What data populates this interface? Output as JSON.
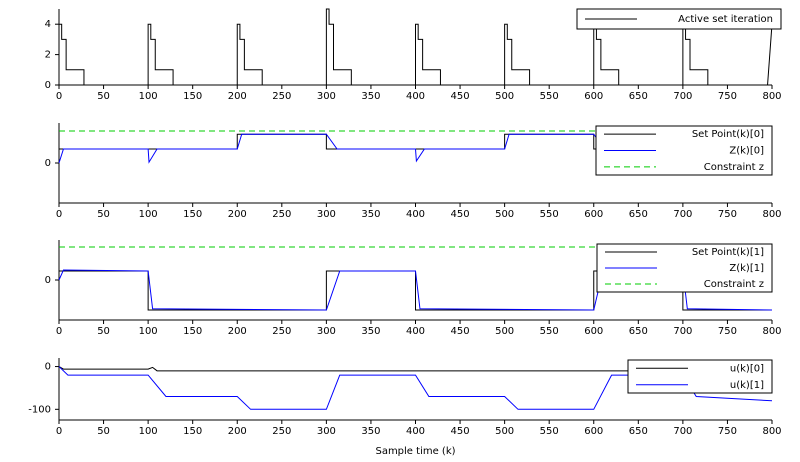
{
  "chart_data": [
    {
      "type": "line",
      "xlim": [
        0,
        800
      ],
      "ylim": [
        0,
        5
      ],
      "yticks": [
        0,
        2,
        4
      ],
      "xticks": [
        0,
        50,
        100,
        150,
        200,
        250,
        300,
        350,
        400,
        450,
        500,
        550,
        600,
        650,
        700,
        750,
        800
      ],
      "series": [
        {
          "name": "Active set iteration",
          "color": "#000000",
          "x": [
            0,
            0,
            3,
            3,
            8,
            8,
            28,
            28,
            100,
            100,
            103,
            103,
            108,
            108,
            128,
            128,
            200,
            200,
            203,
            203,
            208,
            208,
            228,
            228,
            300,
            300,
            303,
            303,
            308,
            308,
            328,
            328,
            400,
            400,
            403,
            403,
            408,
            408,
            428,
            428,
            500,
            500,
            503,
            503,
            508,
            508,
            528,
            528,
            600,
            600,
            603,
            603,
            608,
            608,
            628,
            628,
            700,
            700,
            703,
            703,
            708,
            708,
            728,
            728,
            795,
            800
          ],
          "values": [
            0,
            4,
            4,
            3,
            3,
            1,
            1,
            0,
            0,
            4,
            4,
            3,
            3,
            1,
            1,
            0,
            0,
            4,
            4,
            3,
            3,
            1,
            1,
            0,
            0,
            5,
            5,
            4,
            4,
            1,
            1,
            0,
            0,
            4,
            4,
            3,
            3,
            1,
            1,
            0,
            0,
            4,
            4,
            3,
            3,
            1,
            1,
            0,
            0,
            5,
            5,
            3,
            3,
            1,
            1,
            0,
            0,
            4,
            4,
            3,
            3,
            1,
            1,
            0,
            0,
            4
          ]
        }
      ]
    },
    {
      "type": "line",
      "xlim": [
        0,
        800
      ],
      "ylim": [
        -1,
        1
      ],
      "yticks": [
        0
      ],
      "xticks": [
        0,
        50,
        100,
        150,
        200,
        250,
        300,
        350,
        400,
        450,
        500,
        550,
        600,
        650,
        700,
        750,
        800
      ],
      "series": [
        {
          "name": "Set Point(k)[0]",
          "color": "#000000",
          "x": [
            0,
            0,
            200,
            200,
            300,
            300,
            500,
            500,
            600,
            600,
            770,
            775,
            800
          ],
          "values": [
            0,
            0.35,
            0.35,
            0.72,
            0.72,
            0.35,
            0.35,
            0.72,
            0.72,
            0.35,
            0.35,
            0.5,
            0.5
          ]
        },
        {
          "name": "Z(k)[0]",
          "color": "#0000ff",
          "x": [
            0,
            5,
            100,
            101,
            110,
            200,
            205,
            300,
            312,
            400,
            401,
            410,
            500,
            505,
            600,
            612,
            770,
            780,
            800
          ],
          "values": [
            0,
            0.35,
            0.35,
            0.02,
            0.35,
            0.35,
            0.72,
            0.72,
            0.35,
            0.35,
            0.05,
            0.35,
            0.35,
            0.72,
            0.72,
            0.35,
            0.35,
            0.55,
            0.55
          ]
        },
        {
          "name": "Constraint z",
          "color": "#00cc00",
          "dashed": true,
          "x": [
            0,
            800
          ],
          "values": [
            0.8,
            0.8
          ]
        }
      ]
    },
    {
      "type": "line",
      "xlim": [
        0,
        800
      ],
      "ylim": [
        -1,
        1
      ],
      "yticks": [
        0
      ],
      "xticks": [
        0,
        50,
        100,
        150,
        200,
        250,
        300,
        350,
        400,
        450,
        500,
        550,
        600,
        650,
        700,
        750,
        800
      ],
      "series": [
        {
          "name": "Set Point(k)[1]",
          "color": "#000000",
          "x": [
            0,
            0,
            100,
            100,
            300,
            300,
            400,
            400,
            600,
            600,
            700,
            700,
            800
          ],
          "values": [
            0,
            0.225,
            0.225,
            -0.75,
            -0.75,
            0.225,
            0.225,
            -0.75,
            -0.75,
            0.225,
            0.225,
            -0.75,
            -0.75
          ]
        },
        {
          "name": "Z(k)[1]",
          "color": "#0000ff",
          "x": [
            0,
            5,
            100,
            105,
            300,
            315,
            400,
            405,
            600,
            610,
            700,
            705,
            800
          ],
          "values": [
            0,
            0.25,
            0.225,
            -0.72,
            -0.75,
            0.225,
            0.225,
            -0.72,
            -0.75,
            0.2,
            0.225,
            -0.72,
            -0.75
          ]
        },
        {
          "name": "Constraint z",
          "color": "#00cc00",
          "dashed": true,
          "x": [
            0,
            800
          ],
          "values": [
            0.825,
            0.825
          ]
        }
      ]
    },
    {
      "type": "line",
      "xlim": [
        0,
        800
      ],
      "ylim": [
        -125,
        20
      ],
      "yticks": [
        0,
        -100
      ],
      "xticks": [
        0,
        50,
        100,
        150,
        200,
        250,
        300,
        350,
        400,
        450,
        500,
        550,
        600,
        650,
        700,
        750,
        800
      ],
      "xlabel": "Sample time (k)",
      "series": [
        {
          "name": "u(k)[0]",
          "color": "#000000",
          "x": [
            0,
            5,
            100,
            105,
            110,
            800
          ],
          "values": [
            0,
            -6,
            -6,
            -2,
            -10,
            -10
          ]
        },
        {
          "name": "u(k)[1]",
          "color": "#0000ff",
          "x": [
            0,
            10,
            100,
            120,
            200,
            215,
            300,
            315,
            400,
            415,
            500,
            515,
            600,
            620,
            700,
            715,
            800
          ],
          "values": [
            0,
            -20,
            -20,
            -70,
            -70,
            -100,
            -100,
            -20,
            -20,
            -70,
            -70,
            -100,
            -100,
            -20,
            -20,
            -70,
            -80
          ]
        }
      ]
    }
  ]
}
